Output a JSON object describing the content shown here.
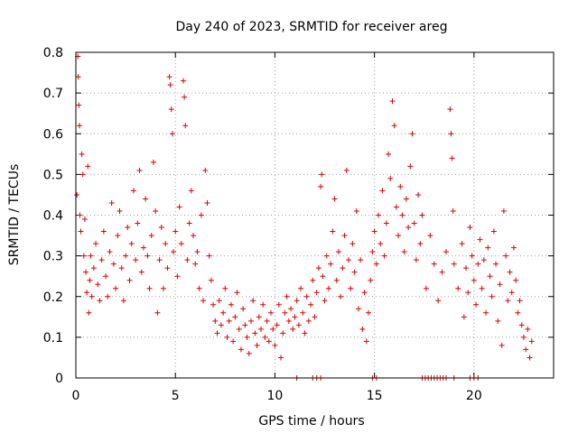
{
  "chart_data": {
    "type": "scatter",
    "title": "Day 240 of 2023, SRMTID for receiver areg",
    "xlabel": "GPS time / hours",
    "ylabel": "SRMTID / TECUs",
    "xlim": [
      0,
      24
    ],
    "ylim": [
      0,
      0.8
    ],
    "x_ticks": [
      0,
      5,
      10,
      15,
      20
    ],
    "y_ticks": [
      0,
      0.1,
      0.2,
      0.3,
      0.4,
      0.5,
      0.6,
      0.7,
      0.8
    ],
    "x_tick_labels": [
      "0",
      "5",
      "10",
      "15",
      "20"
    ],
    "y_tick_labels": [
      "0",
      "0.1",
      "0.2",
      "0.3",
      "0.4",
      "0.5",
      "0.6",
      "0.7",
      "0.8"
    ],
    "grid": true,
    "marker": "+",
    "color": "#dd0000",
    "series": [
      {
        "name": "SRMTID",
        "points": [
          [
            0.05,
            0.45
          ],
          [
            0.1,
            0.79
          ],
          [
            0.12,
            0.74
          ],
          [
            0.15,
            0.67
          ],
          [
            0.18,
            0.62
          ],
          [
            0.2,
            0.4
          ],
          [
            0.25,
            0.36
          ],
          [
            0.3,
            0.55
          ],
          [
            0.35,
            0.5
          ],
          [
            0.4,
            0.3
          ],
          [
            0.45,
            0.39
          ],
          [
            0.5,
            0.26
          ],
          [
            0.55,
            0.21
          ],
          [
            0.6,
            0.52
          ],
          [
            0.65,
            0.16
          ],
          [
            0.7,
            0.24
          ],
          [
            0.75,
            0.3
          ],
          [
            0.8,
            0.2
          ],
          [
            0.9,
            0.27
          ],
          [
            1.0,
            0.33
          ],
          [
            1.1,
            0.23
          ],
          [
            1.2,
            0.19
          ],
          [
            1.3,
            0.29
          ],
          [
            1.4,
            0.36
          ],
          [
            1.5,
            0.25
          ],
          [
            1.6,
            0.2
          ],
          [
            1.7,
            0.31
          ],
          [
            1.8,
            0.43
          ],
          [
            1.9,
            0.28
          ],
          [
            2.0,
            0.22
          ],
          [
            2.1,
            0.35
          ],
          [
            2.2,
            0.41
          ],
          [
            2.3,
            0.27
          ],
          [
            2.4,
            0.19
          ],
          [
            2.5,
            0.3
          ],
          [
            2.6,
            0.37
          ],
          [
            2.7,
            0.24
          ],
          [
            2.8,
            0.33
          ],
          [
            2.9,
            0.46
          ],
          [
            3.0,
            0.29
          ],
          [
            3.1,
            0.38
          ],
          [
            3.2,
            0.51
          ],
          [
            3.3,
            0.26
          ],
          [
            3.4,
            0.32
          ],
          [
            3.5,
            0.44
          ],
          [
            3.6,
            0.3
          ],
          [
            3.7,
            0.22
          ],
          [
            3.8,
            0.35
          ],
          [
            3.9,
            0.53
          ],
          [
            4.0,
            0.41
          ],
          [
            4.1,
            0.16
          ],
          [
            4.2,
            0.29
          ],
          [
            4.3,
            0.37
          ],
          [
            4.4,
            0.22
          ],
          [
            4.5,
            0.33
          ],
          [
            4.6,
            0.27
          ],
          [
            4.7,
            0.74
          ],
          [
            4.75,
            0.72
          ],
          [
            4.8,
            0.66
          ],
          [
            4.85,
            0.6
          ],
          [
            4.9,
            0.31
          ],
          [
            5.0,
            0.36
          ],
          [
            5.1,
            0.25
          ],
          [
            5.2,
            0.42
          ],
          [
            5.3,
            0.33
          ],
          [
            5.4,
            0.73
          ],
          [
            5.45,
            0.69
          ],
          [
            5.5,
            0.62
          ],
          [
            5.6,
            0.29
          ],
          [
            5.7,
            0.38
          ],
          [
            5.8,
            0.46
          ],
          [
            5.9,
            0.35
          ],
          [
            6.0,
            0.28
          ],
          [
            6.1,
            0.31
          ],
          [
            6.2,
            0.22
          ],
          [
            6.3,
            0.4
          ],
          [
            6.4,
            0.19
          ],
          [
            6.5,
            0.51
          ],
          [
            6.6,
            0.43
          ],
          [
            6.7,
            0.3
          ],
          [
            6.8,
            0.24
          ],
          [
            6.9,
            0.18
          ],
          [
            7.0,
            0.14
          ],
          [
            7.1,
            0.11
          ],
          [
            7.2,
            0.19
          ],
          [
            7.3,
            0.13
          ],
          [
            7.4,
            0.16
          ],
          [
            7.5,
            0.22
          ],
          [
            7.6,
            0.1
          ],
          [
            7.7,
            0.14
          ],
          [
            7.8,
            0.18
          ],
          [
            7.9,
            0.09
          ],
          [
            8.0,
            0.15
          ],
          [
            8.1,
            0.21
          ],
          [
            8.2,
            0.12
          ],
          [
            8.3,
            0.07
          ],
          [
            8.4,
            0.17
          ],
          [
            8.5,
            0.13
          ],
          [
            8.6,
            0.1
          ],
          [
            8.7,
            0.06
          ],
          [
            8.8,
            0.14
          ],
          [
            8.9,
            0.19
          ],
          [
            9.0,
            0.11
          ],
          [
            9.1,
            0.08
          ],
          [
            9.2,
            0.15
          ],
          [
            9.3,
            0.12
          ],
          [
            9.4,
            0.18
          ],
          [
            9.5,
            0.1
          ],
          [
            9.6,
            0.14
          ],
          [
            9.7,
            0.09
          ],
          [
            9.8,
            0.16
          ],
          [
            9.9,
            0.12
          ],
          [
            10.0,
            0.08
          ],
          [
            10.1,
            0.13
          ],
          [
            10.2,
            0.18
          ],
          [
            10.3,
            0.05
          ],
          [
            10.4,
            0.11
          ],
          [
            10.5,
            0.16
          ],
          [
            10.6,
            0.2
          ],
          [
            10.7,
            0.14
          ],
          [
            10.8,
            0.17
          ],
          [
            10.9,
            0.12
          ],
          [
            11.0,
            0.15
          ],
          [
            11.1,
            0.19
          ],
          [
            11.2,
            0.13
          ],
          [
            11.3,
            0.22
          ],
          [
            11.4,
            0.16
          ],
          [
            11.5,
            0.11
          ],
          [
            11.6,
            0.2
          ],
          [
            11.7,
            0.14
          ],
          [
            11.8,
            0.18
          ],
          [
            11.9,
            0.24
          ],
          [
            12.0,
            0.15
          ],
          [
            12.1,
            0.21
          ],
          [
            12.2,
            0.27
          ],
          [
            12.3,
            0.47
          ],
          [
            12.35,
            0.5
          ],
          [
            12.4,
            0.25
          ],
          [
            12.5,
            0.19
          ],
          [
            12.6,
            0.3
          ],
          [
            12.7,
            0.22
          ],
          [
            12.8,
            0.28
          ],
          [
            12.9,
            0.36
          ],
          [
            13.0,
            0.44
          ],
          [
            13.1,
            0.24
          ],
          [
            13.2,
            0.31
          ],
          [
            13.3,
            0.2
          ],
          [
            13.4,
            0.27
          ],
          [
            13.5,
            0.35
          ],
          [
            13.6,
            0.51
          ],
          [
            13.7,
            0.29
          ],
          [
            13.8,
            0.22
          ],
          [
            13.9,
            0.33
          ],
          [
            14.0,
            0.26
          ],
          [
            14.1,
            0.41
          ],
          [
            14.2,
            0.17
          ],
          [
            14.3,
            0.29
          ],
          [
            14.4,
            0.12
          ],
          [
            14.5,
            0.21
          ],
          [
            14.6,
            0.09
          ],
          [
            14.7,
            0.16
          ],
          [
            14.8,
            0.24
          ],
          [
            14.9,
            0.31
          ],
          [
            15.0,
            0.36
          ],
          [
            15.1,
            0.28
          ],
          [
            15.2,
            0.4
          ],
          [
            15.3,
            0.33
          ],
          [
            15.4,
            0.46
          ],
          [
            15.5,
            0.3
          ],
          [
            15.6,
            0.38
          ],
          [
            15.7,
            0.55
          ],
          [
            15.8,
            0.49
          ],
          [
            15.9,
            0.68
          ],
          [
            16.0,
            0.62
          ],
          [
            16.1,
            0.42
          ],
          [
            16.2,
            0.35
          ],
          [
            16.3,
            0.47
          ],
          [
            16.4,
            0.4
          ],
          [
            16.5,
            0.31
          ],
          [
            16.6,
            0.44
          ],
          [
            16.7,
            0.37
          ],
          [
            16.8,
            0.52
          ],
          [
            16.9,
            0.6
          ],
          [
            17.0,
            0.38
          ],
          [
            17.1,
            0.29
          ],
          [
            17.2,
            0.45
          ],
          [
            17.3,
            0.33
          ],
          [
            17.4,
            0.4
          ],
          [
            17.6,
            0.22
          ],
          [
            17.8,
            0.35
          ],
          [
            18.0,
            0.28
          ],
          [
            18.2,
            0.19
          ],
          [
            18.4,
            0.26
          ],
          [
            18.6,
            0.31
          ],
          [
            18.8,
            0.66
          ],
          [
            18.85,
            0.6
          ],
          [
            18.9,
            0.54
          ],
          [
            18.95,
            0.41
          ],
          [
            19.0,
            0.28
          ],
          [
            19.2,
            0.22
          ],
          [
            19.4,
            0.33
          ],
          [
            19.5,
            0.15
          ],
          [
            19.6,
            0.27
          ],
          [
            19.7,
            0.21
          ],
          [
            19.8,
            0.37
          ],
          [
            19.9,
            0.3
          ],
          [
            20.0,
            0.24
          ],
          [
            20.1,
            0.18
          ],
          [
            20.2,
            0.28
          ],
          [
            20.3,
            0.34
          ],
          [
            20.4,
            0.22
          ],
          [
            20.5,
            0.29
          ],
          [
            20.6,
            0.16
          ],
          [
            20.7,
            0.32
          ],
          [
            20.8,
            0.25
          ],
          [
            20.9,
            0.2
          ],
          [
            21.0,
            0.36
          ],
          [
            21.1,
            0.28
          ],
          [
            21.2,
            0.14
          ],
          [
            21.3,
            0.23
          ],
          [
            21.4,
            0.08
          ],
          [
            21.5,
            0.41
          ],
          [
            21.6,
            0.3
          ],
          [
            21.7,
            0.19
          ],
          [
            21.8,
            0.26
          ],
          [
            21.9,
            0.21
          ],
          [
            22.0,
            0.32
          ],
          [
            22.1,
            0.24
          ],
          [
            22.2,
            0.16
          ],
          [
            22.3,
            0.19
          ],
          [
            22.4,
            0.13
          ],
          [
            22.5,
            0.1
          ],
          [
            22.6,
            0.07
          ],
          [
            22.7,
            0.12
          ],
          [
            22.8,
            0.05
          ],
          [
            22.9,
            0.09
          ]
        ]
      }
    ],
    "zero_points_x": [
      11.1,
      11.9,
      12.1,
      12.3,
      14.9,
      15.1,
      17.4,
      17.55,
      17.7,
      17.85,
      18.0,
      18.15,
      18.3,
      18.45,
      18.6,
      19.0,
      19.8,
      20.0,
      20.2
    ]
  }
}
